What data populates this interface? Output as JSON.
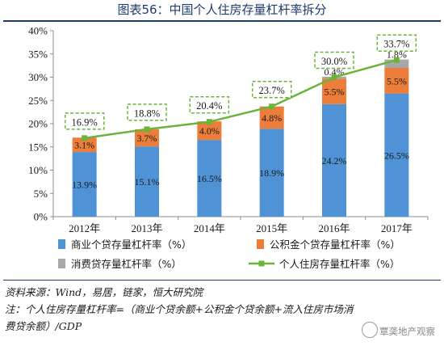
{
  "title": "图表56：中国个人住房存量杠杆率拆分",
  "chart_data": {
    "type": "bar",
    "stacked": true,
    "categories": [
      "2012年",
      "2013年",
      "2014年",
      "2015年",
      "2016年",
      "2017年"
    ],
    "ylim": [
      0,
      40
    ],
    "yticks": [
      "0%",
      "5%",
      "10%",
      "15%",
      "20%",
      "25%",
      "30%",
      "35%",
      "40%"
    ],
    "series": [
      {
        "name": "商业个贷存量杠杆率（%）",
        "color": "#4f93d6",
        "values": [
          13.9,
          15.1,
          16.5,
          18.9,
          24.2,
          26.5
        ],
        "labels": [
          "13.9%",
          "15.1%",
          "16.5%",
          "18.9%",
          "24.2%",
          "26.5%"
        ]
      },
      {
        "name": "公积金个贷存量杠杆率（%）",
        "color": "#ec7d3a",
        "values": [
          3.1,
          3.7,
          4.0,
          4.8,
          5.5,
          5.5
        ],
        "labels": [
          "3.1%",
          "3.7%",
          "4.0%",
          "4.8%",
          "5.5%",
          "5.5%"
        ]
      },
      {
        "name": "消费贷存量杠杆率（%）",
        "color": "#a8a8a8",
        "values": [
          0,
          0,
          0,
          0,
          0.4,
          1.8
        ],
        "labels": [
          "",
          "",
          "",
          "",
          "0.4%",
          "1.8%"
        ]
      }
    ],
    "line": {
      "name": "个人住房存量杠杆率（%）",
      "color": "#6bb43a",
      "values": [
        16.9,
        18.8,
        20.4,
        23.7,
        30.0,
        33.7
      ],
      "labels": [
        "16.9%",
        "18.8%",
        "20.4%",
        "23.7%",
        "30.0%",
        "33.7%"
      ]
    },
    "legend_position": "bottom"
  },
  "footer": {
    "source": "资料来源：Wind，易居，链家，恒大研究院",
    "note_line1": "注：个人住房存量杠杆率=（商业个贷余额+公积金个贷余额+流入住房市场消",
    "note_line2": "费贷余额）/GDP"
  },
  "watermark": "覃䶮地产观察"
}
